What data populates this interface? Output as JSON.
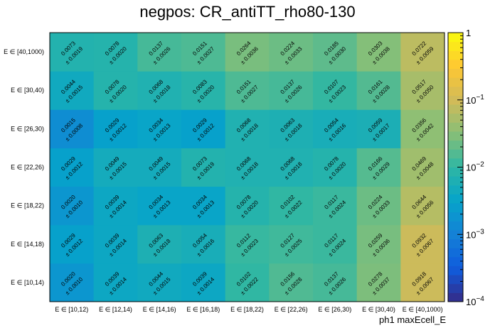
{
  "title": "negpos: CR_antiTT_rho80-130",
  "chart_data": {
    "type": "heatmap",
    "title": "negpos: CR_antiTT_rho80-130",
    "xlabel": "ph1 maxEcell_E",
    "ylabel": "",
    "x_categories": [
      "E ∈ [10,12)",
      "E ∈ [12,14)",
      "E ∈ [14,16)",
      "E ∈ [16,18)",
      "E ∈ [18,22)",
      "E ∈ [22,26)",
      "E ∈ [26,30)",
      "E ∈ [30,40)",
      "E ∈ [40,1000)"
    ],
    "y_categories": [
      "E ∈ [10,14)",
      "E ∈ [14,18)",
      "E ∈ [18,22)",
      "E ∈ [22,26)",
      "E ∈ [26,30)",
      "E ∈ [30,40)",
      "E ∈ [40,1000)"
    ],
    "values": [
      [
        0.002,
        0.0039,
        0.0044,
        0.0039,
        0.0102,
        0.0156,
        0.0137,
        0.0278,
        0.0918
      ],
      [
        0.0029,
        0.0039,
        0.0063,
        0.0054,
        0.0112,
        0.0127,
        0.0117,
        0.0259,
        0.0932
      ],
      [
        0.002,
        0.0039,
        0.0034,
        0.0034,
        0.0078,
        0.0102,
        0.0117,
        0.0224,
        0.0644
      ],
      [
        0.0029,
        0.0049,
        0.0049,
        0.0073,
        0.0068,
        0.0068,
        0.0078,
        0.0166,
        0.0469
      ],
      [
        0.0015,
        0.0029,
        0.0034,
        0.0029,
        0.0068,
        0.0063,
        0.0054,
        0.0059,
        0.0356
      ],
      [
        0.0044,
        0.0078,
        0.0068,
        0.0083,
        0.0151,
        0.0137,
        0.0107,
        0.0161,
        0.0517
      ],
      [
        0.0073,
        0.0078,
        0.0137,
        0.0151,
        0.0264,
        0.0224,
        0.0185,
        0.0303,
        0.0722
      ]
    ],
    "errors": [
      [
        0.001,
        0.0014,
        0.0015,
        0.0014,
        0.0022,
        0.0028,
        0.0026,
        0.0037,
        0.0067
      ],
      [
        0.0012,
        0.0014,
        0.0018,
        0.0016,
        0.0023,
        0.0025,
        0.0024,
        0.0036,
        0.0067
      ],
      [
        0.001,
        0.0014,
        0.0013,
        0.0013,
        0.002,
        0.0022,
        0.0024,
        0.0033,
        0.0056
      ],
      [
        0.0012,
        0.0015,
        0.0015,
        0.0019,
        0.0018,
        0.0018,
        0.002,
        0.0029,
        0.0048
      ],
      [
        0.0008,
        0.0012,
        0.0013,
        0.0012,
        0.0018,
        0.0018,
        0.0016,
        0.0017,
        0.0042
      ],
      [
        0.0015,
        0.002,
        0.0018,
        0.002,
        0.0027,
        0.0026,
        0.0023,
        0.0028,
        0.005
      ],
      [
        0.0019,
        0.002,
        0.0026,
        0.0027,
        0.0036,
        0.0033,
        0.003,
        0.0038,
        0.0059
      ]
    ],
    "color_scale": "log",
    "zlim": [
      0.0001,
      1
    ],
    "colorbar_ticks": [
      "10^-4",
      "10^-3",
      "10^-2",
      "10^-1",
      "1"
    ],
    "palette": [
      "#352a87",
      "#0f5cdd",
      "#1481d6",
      "#06a4ca",
      "#2eb7a4",
      "#87bf77",
      "#d1bb59",
      "#fec832",
      "#f9fb0e"
    ]
  }
}
